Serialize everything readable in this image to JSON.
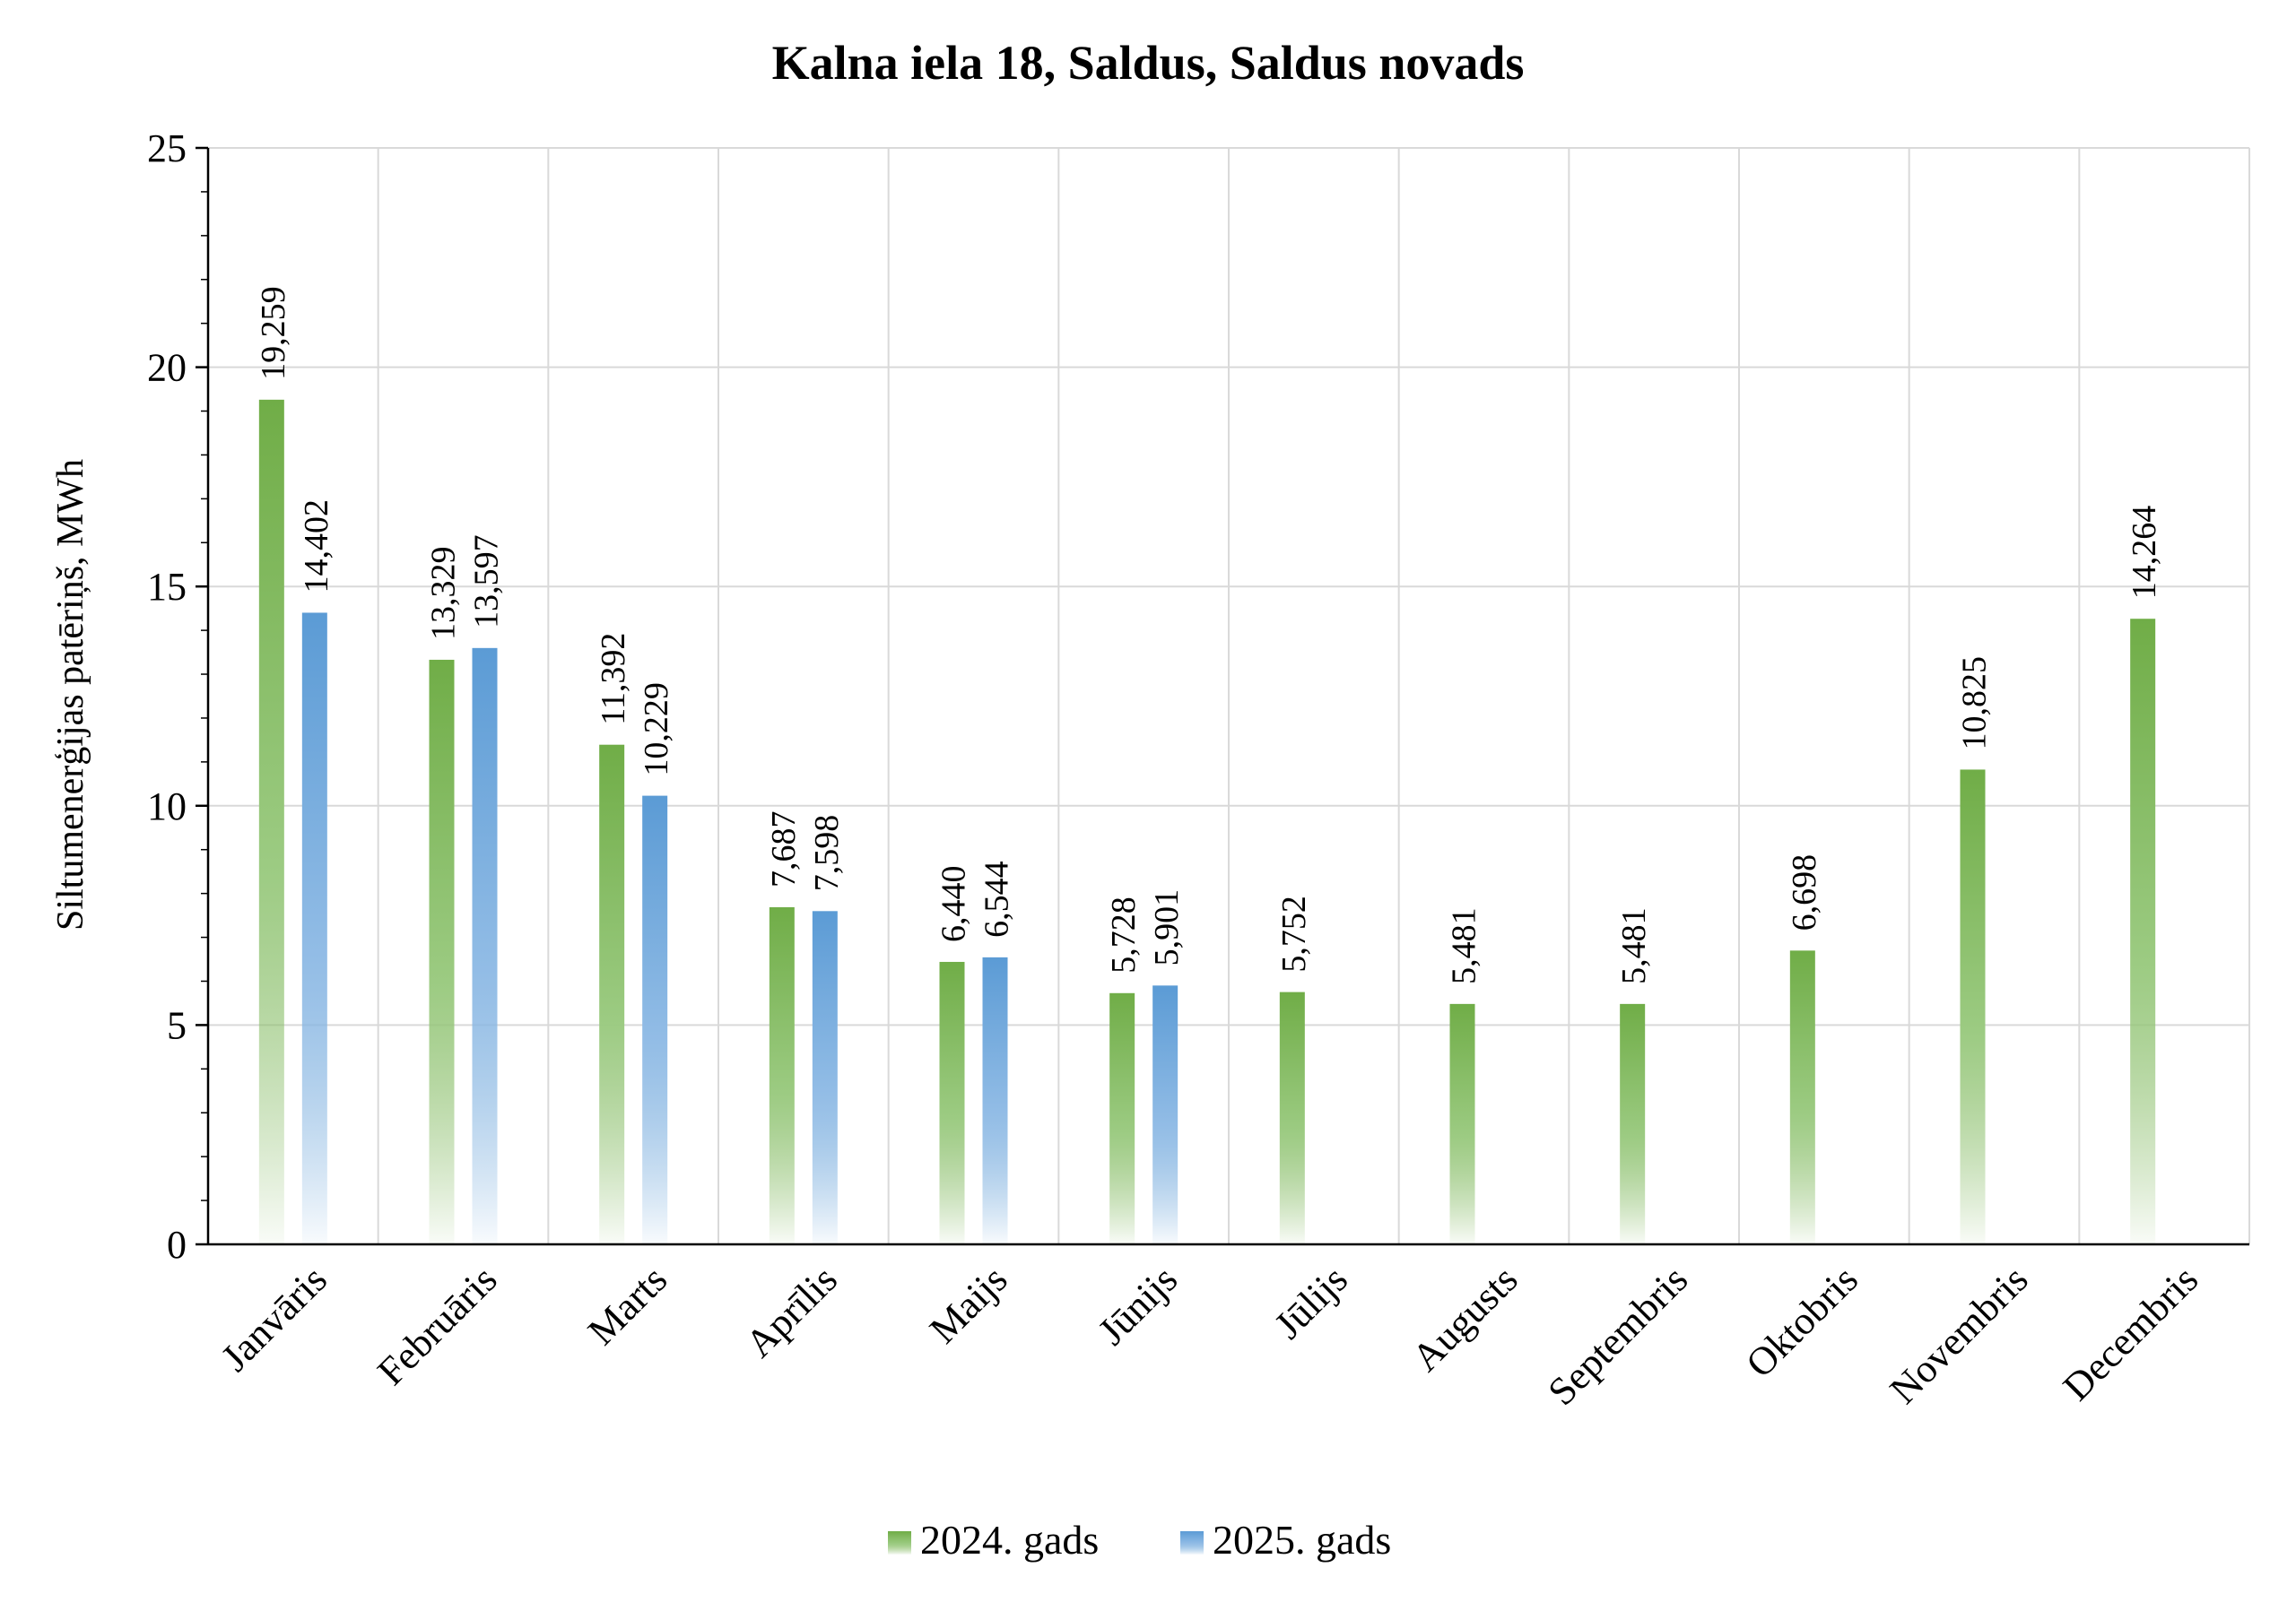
{
  "chart_data": {
    "type": "bar",
    "title": "Kalna iela 18, Saldus, Saldus novads",
    "xlabel": "",
    "ylabel": "Siltumenerģijas patēriņš, MWh",
    "ylim": [
      0,
      25
    ],
    "yticks": [
      "0",
      "5",
      "10",
      "15",
      "20",
      "25"
    ],
    "grid": true,
    "legend_position": "bottom",
    "categories": [
      "Janvāris",
      "Februāris",
      "Marts",
      "Aprīlis",
      "Maijs",
      "Jūnijs",
      "Jūlijs",
      "Augusts",
      "Septembris",
      "Oktobris",
      "Novembris",
      "Decembris"
    ],
    "series": [
      {
        "name": "2024. gads",
        "color": "#70ad47",
        "values": [
          19.259,
          13.329,
          11.392,
          7.687,
          6.44,
          5.728,
          5.752,
          5.481,
          5.481,
          6.698,
          10.825,
          14.264
        ],
        "labels": [
          "19,259",
          "13,329",
          "11,392",
          "7,687",
          "6,440",
          "5,728",
          "5,752",
          "5,481",
          "5,481",
          "6,698",
          "10,825",
          "14,264"
        ]
      },
      {
        "name": "2025. gads",
        "color": "#5b9bd5",
        "values": [
          14.402,
          13.597,
          10.229,
          7.598,
          6.544,
          5.901,
          null,
          null,
          null,
          null,
          null,
          null
        ],
        "labels": [
          "14,402",
          "13,597",
          "10,229",
          "7,598",
          "6,544",
          "5,901",
          "",
          "",
          "",
          "",
          "",
          ""
        ]
      }
    ]
  }
}
